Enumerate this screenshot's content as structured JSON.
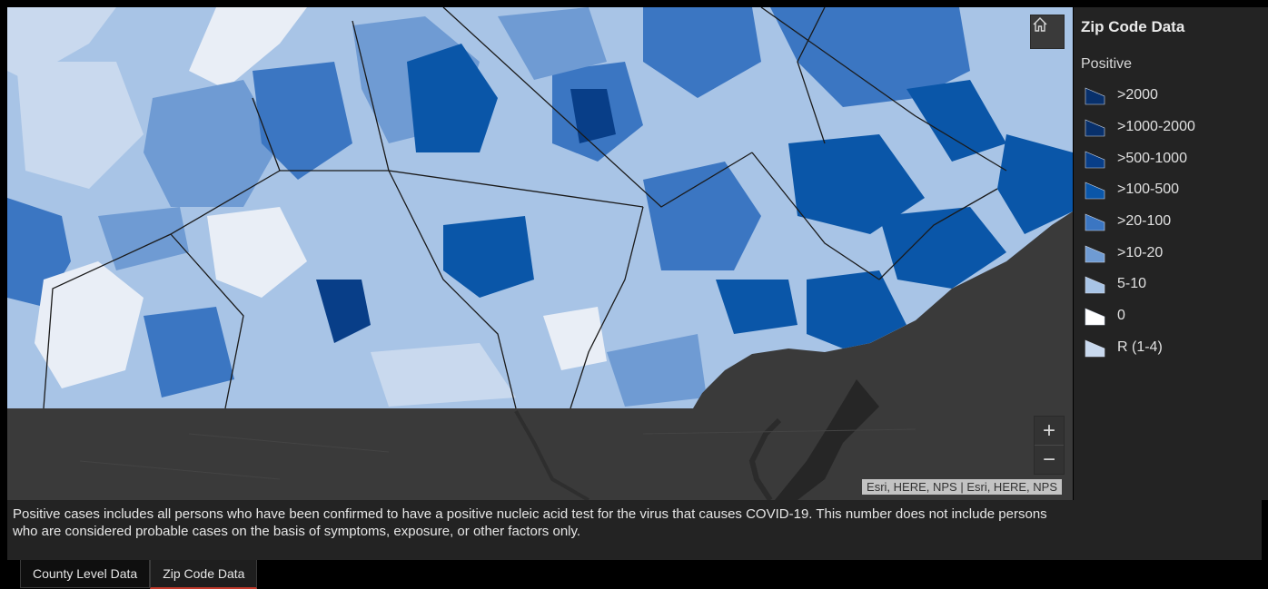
{
  "map": {
    "attribution": "Esri, HERE, NPS | Esri, HERE, NPS",
    "base_color": "#3a3a3a",
    "controls": {
      "home": "home-icon",
      "zoom_in": "+",
      "zoom_out": "−"
    }
  },
  "legend": {
    "title": "Zip Code Data",
    "field": "Positive",
    "classes": [
      {
        "label": ">2000",
        "color": "#08306b"
      },
      {
        "label": ">1000-2000",
        "color": "#08306b"
      },
      {
        "label": ">500-1000",
        "color": "#083e88"
      },
      {
        "label": ">100-500",
        "color": "#0a56a8"
      },
      {
        "label": ">20-100",
        "color": "#3b76c2"
      },
      {
        "label": ">10-20",
        "color": "#6f9bd3"
      },
      {
        "label": "5-10",
        "color": "#a8c4e6"
      },
      {
        "label": "0",
        "color": "#ffffff"
      },
      {
        "label": "R (1-4)",
        "color": "#c9d9ee"
      }
    ]
  },
  "note": "Positive cases includes all persons who have been confirmed to have a positive nucleic acid test for the virus that causes COVID-19.  This number does not include persons who are considered probable cases on the basis of symptoms, exposure, or other factors only.",
  "tabs": [
    {
      "label": "County Level Data",
      "active": false
    },
    {
      "label": "Zip Code Data",
      "active": true
    }
  ]
}
